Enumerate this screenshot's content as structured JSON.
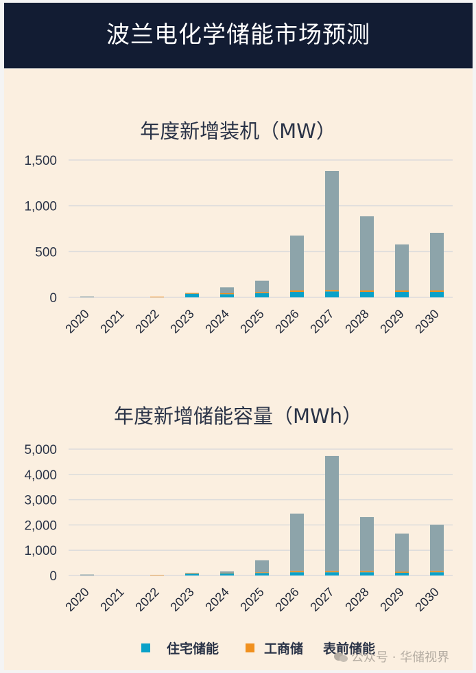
{
  "header": {
    "title": "波兰电化学储能市场预测"
  },
  "colors": {
    "residential": "#0aa1c8",
    "commercial": "#f0901e",
    "frontmeter": "#8da4aa",
    "grid": "#dcdcdc",
    "background": "#fbefe0",
    "header_bg": "#121c33"
  },
  "legend": {
    "items": [
      {
        "label": "住宅储能",
        "color": "#0aa1c8"
      },
      {
        "label": "工商储",
        "color": "#f0901e"
      },
      {
        "label": "表前储能",
        "color": null
      }
    ]
  },
  "watermark": {
    "text": "公众号 · 华储视界"
  },
  "chart_data": [
    {
      "type": "bar",
      "stacked": true,
      "title": "年度新增装机（MW）",
      "xlabel": "",
      "ylabel": "",
      "categories": [
        "2020",
        "2021",
        "2022",
        "2023",
        "2024",
        "2025",
        "2026",
        "2027",
        "2028",
        "2029",
        "2030"
      ],
      "ylim": [
        0,
        1500
      ],
      "yticks": [
        0,
        500,
        1000,
        1500
      ],
      "ytick_labels": [
        "0",
        "500",
        "1,000",
        "1,500"
      ],
      "grid": true,
      "legend_position": "bottom",
      "series": [
        {
          "name": "住宅储能",
          "values": [
            0,
            0,
            0,
            40,
            35,
            45,
            60,
            65,
            60,
            60,
            60
          ]
        },
        {
          "name": "工商储",
          "values": [
            0,
            0,
            8,
            8,
            10,
            12,
            15,
            15,
            15,
            15,
            15
          ]
        },
        {
          "name": "表前储能",
          "values": [
            10,
            0,
            0,
            0,
            65,
            125,
            600,
            1300,
            810,
            503,
            630
          ]
        }
      ]
    },
    {
      "type": "bar",
      "stacked": true,
      "title": "年度新增储能容量（MWh）",
      "xlabel": "",
      "ylabel": "",
      "categories": [
        "2020",
        "2021",
        "2022",
        "2023",
        "2024",
        "2025",
        "2026",
        "2027",
        "2028",
        "2029",
        "2030"
      ],
      "ylim": [
        0,
        5000
      ],
      "yticks": [
        0,
        1000,
        2000,
        3000,
        4000,
        5000
      ],
      "ytick_labels": [
        "0",
        "1,000",
        "2,000",
        "3,000",
        "4,000",
        "5,000"
      ],
      "grid": true,
      "legend_position": "bottom",
      "series": [
        {
          "name": "住宅储能",
          "values": [
            0,
            0,
            0,
            70,
            80,
            100,
            130,
            130,
            130,
            110,
            130
          ]
        },
        {
          "name": "工商储",
          "values": [
            0,
            0,
            20,
            20,
            20,
            30,
            40,
            40,
            40,
            40,
            40
          ]
        },
        {
          "name": "表前储能",
          "values": [
            40,
            0,
            0,
            10,
            60,
            470,
            2280,
            4560,
            2140,
            1510,
            1840
          ]
        }
      ]
    }
  ]
}
